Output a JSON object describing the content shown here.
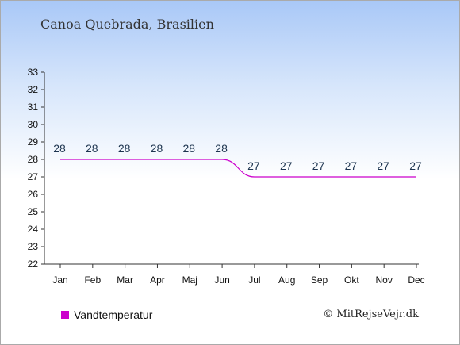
{
  "title": "Canoa Quebrada, Brasilien",
  "credit": "© MitRejseVejr.dk",
  "chart_data": {
    "type": "line",
    "categories": [
      "Jan",
      "Feb",
      "Mar",
      "Apr",
      "Maj",
      "Jun",
      "Jul",
      "Aug",
      "Sep",
      "Okt",
      "Nov",
      "Dec"
    ],
    "series": [
      {
        "name": "Vandtemperatur",
        "color": "#cc00cc",
        "values": [
          28,
          28,
          28,
          28,
          28,
          28,
          27,
          27,
          27,
          27,
          27,
          27
        ]
      }
    ],
    "ylim": [
      22,
      33
    ],
    "yticks": [
      22,
      23,
      24,
      25,
      26,
      27,
      28,
      29,
      30,
      31,
      32,
      33
    ],
    "data_label_color": "#1e3550",
    "legend": "bottom-left",
    "grid": false
  }
}
